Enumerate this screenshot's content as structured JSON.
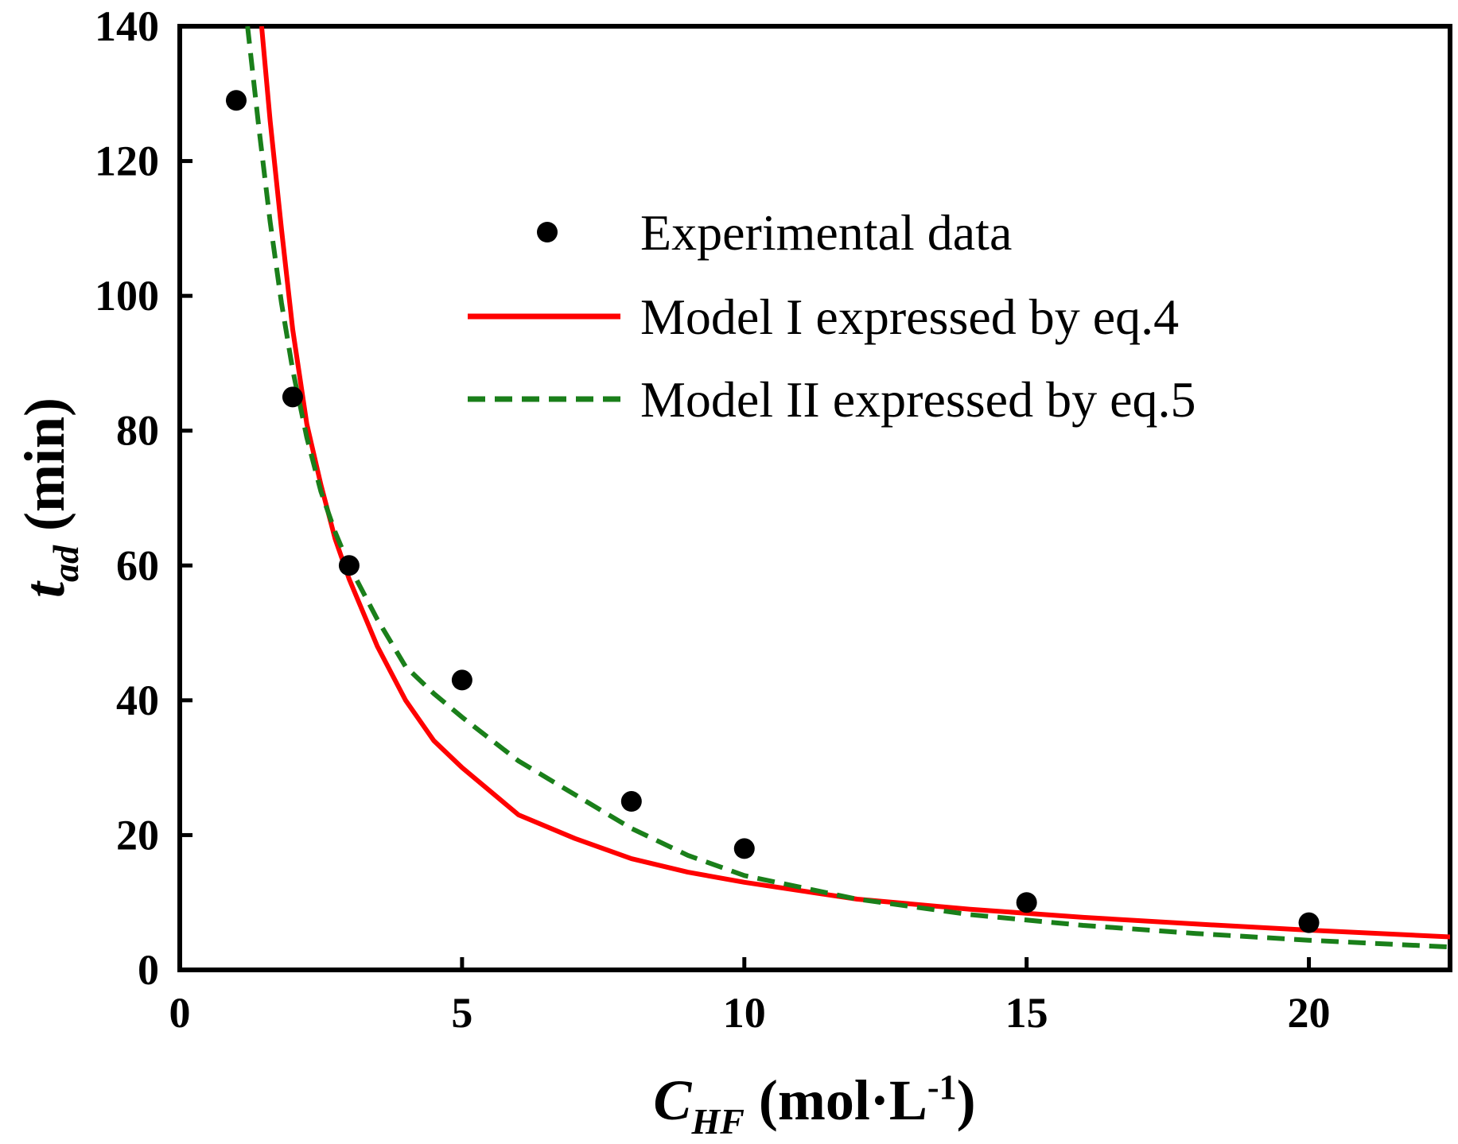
{
  "chart_data": {
    "type": "scatter",
    "xlabel": {
      "main": "C",
      "sub": "HF",
      "unit_pre": " (mol·L",
      "unit_sup": "-1",
      "unit_post": ")"
    },
    "ylabel": {
      "main": "t",
      "sub": "ad",
      "unit": " (min)"
    },
    "xlim": [
      0,
      22.5
    ],
    "ylim": [
      0,
      140
    ],
    "xticks": [
      0,
      5,
      10,
      15,
      20
    ],
    "yticks": [
      0,
      20,
      40,
      60,
      80,
      100,
      120,
      140
    ],
    "xtick_labels": [
      "0",
      "5",
      "10",
      "15",
      "20"
    ],
    "ytick_labels": [
      "0",
      "20",
      "40",
      "60",
      "80",
      "100",
      "120",
      "140"
    ],
    "legend_position": "top-right",
    "series": [
      {
        "name": "Experimental data",
        "kind": "scatter",
        "color": "#000000",
        "x": [
          1,
          2,
          3,
          5,
          8,
          10,
          15,
          20
        ],
        "y": [
          129,
          85,
          60,
          43,
          25,
          18,
          10,
          7
        ]
      },
      {
        "name": "Model I expressed by eq.4",
        "kind": "line",
        "style": "solid",
        "color": "#ff0000",
        "x": [
          1.45,
          1.6,
          1.8,
          2.0,
          2.25,
          2.5,
          2.75,
          3.0,
          3.5,
          4.0,
          4.5,
          5.0,
          6.0,
          7.0,
          8.0,
          9.0,
          10.0,
          12.0,
          14.0,
          16.0,
          18.0,
          20.0,
          22.5
        ],
        "y": [
          140,
          126,
          110,
          95,
          81,
          72,
          64,
          58,
          48,
          40,
          34,
          30,
          23,
          19.5,
          16.5,
          14.5,
          13,
          10.5,
          9,
          7.8,
          6.8,
          5.9,
          4.9
        ]
      },
      {
        "name": "Model II expressed by eq.5",
        "kind": "line",
        "style": "dashed",
        "color": "#1a7f1a",
        "x": [
          1.2,
          1.4,
          1.6,
          1.8,
          2.0,
          2.25,
          2.5,
          2.75,
          3.0,
          3.5,
          4.0,
          4.5,
          5.0,
          6.0,
          7.0,
          8.0,
          9.0,
          10.0,
          12.0,
          14.0,
          16.0,
          18.0,
          20.0,
          22.5
        ],
        "y": [
          140,
          125,
          111,
          99,
          89,
          79,
          71,
          65,
          60,
          52,
          45,
          41,
          37.5,
          31,
          26,
          21,
          17,
          14,
          10.5,
          8.2,
          6.6,
          5.4,
          4.4,
          3.4
        ]
      }
    ]
  }
}
